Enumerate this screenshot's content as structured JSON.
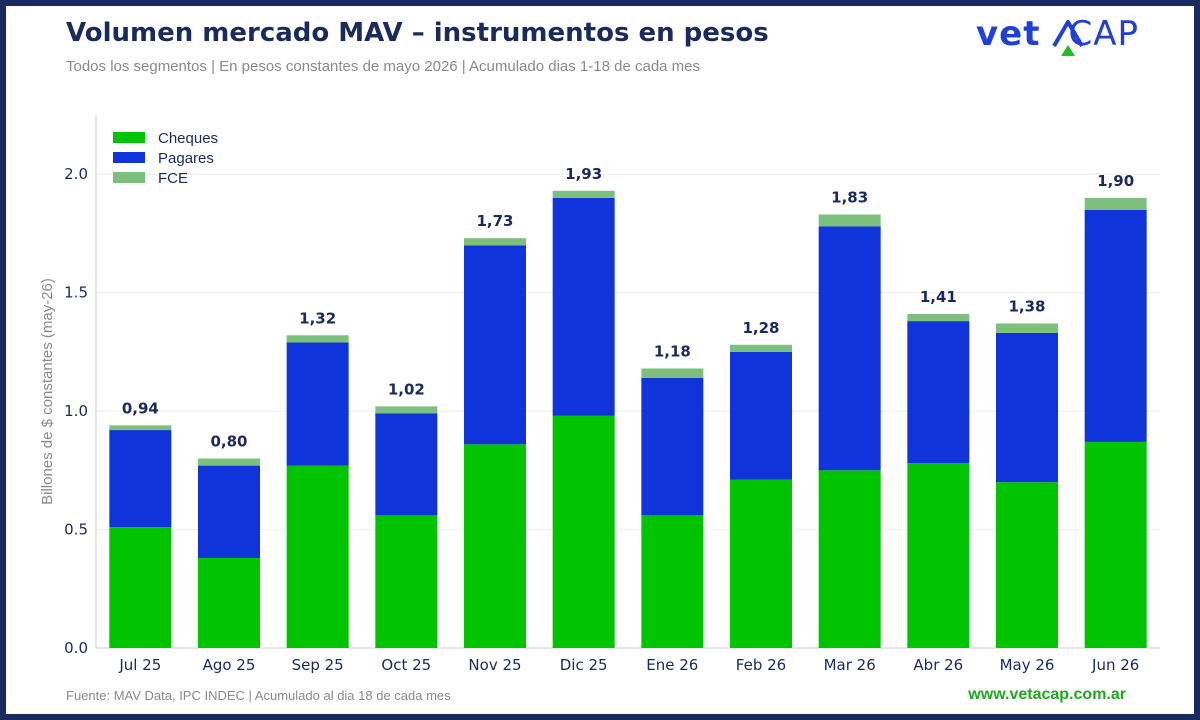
{
  "header": {
    "title": "Volumen mercado MAV – instrumentos en pesos",
    "subtitle": "Todos los segmentos | En pesos constantes de mayo 2026 | Acumulado dias 1-18 de cada mes",
    "logo_bold": "vet",
    "logo_light": "CAP"
  },
  "footer": {
    "source": "Fuente: MAV Data, IPC INDEC  |  Acumulado al dia 18 de cada mes",
    "website": "www.vetacap.com.ar"
  },
  "colors": {
    "background_frame": "#1a2a5e",
    "cheques": "#00c400",
    "pagares": "#1034dc",
    "fce": "#7dbf7d",
    "text_dark": "#1a2a5e",
    "text_muted": "#8a8a8a",
    "grid": "#eeeeee"
  },
  "chart_data": {
    "type": "bar",
    "stacked": true,
    "categories": [
      "Jul 25",
      "Ago 25",
      "Sep 25",
      "Oct 25",
      "Nov 25",
      "Dic 25",
      "Ene 26",
      "Feb 26",
      "Mar 26",
      "Abr 26",
      "May 26",
      "Jun 26"
    ],
    "series": [
      {
        "name": "Cheques",
        "color": "#00c400",
        "values": [
          0.51,
          0.38,
          0.77,
          0.56,
          0.86,
          0.98,
          0.56,
          0.71,
          0.75,
          0.78,
          0.7,
          0.87
        ]
      },
      {
        "name": "Pagares",
        "color": "#1034dc",
        "values": [
          0.41,
          0.39,
          0.52,
          0.43,
          0.84,
          0.92,
          0.58,
          0.54,
          1.03,
          0.6,
          0.63,
          0.98
        ]
      },
      {
        "name": "FCE",
        "color": "#7dbf7d",
        "values": [
          0.02,
          0.03,
          0.03,
          0.03,
          0.03,
          0.03,
          0.04,
          0.03,
          0.05,
          0.03,
          0.04,
          0.05
        ]
      }
    ],
    "totals": [
      "0,94",
      "0,80",
      "1,32",
      "1,02",
      "1,73",
      "1,93",
      "1,18",
      "1,28",
      "1,83",
      "1,41",
      "1,38",
      "1,90"
    ],
    "title": "Volumen mercado MAV – instrumentos en pesos",
    "ylabel": "Billones de $ constantes (may-26)",
    "xlabel": "",
    "ylim": [
      0,
      2.25
    ],
    "yticks": [
      "0.0",
      "0.5",
      "1.0",
      "1.5",
      "2.0"
    ],
    "grid": true,
    "legend_position": "top-left"
  }
}
